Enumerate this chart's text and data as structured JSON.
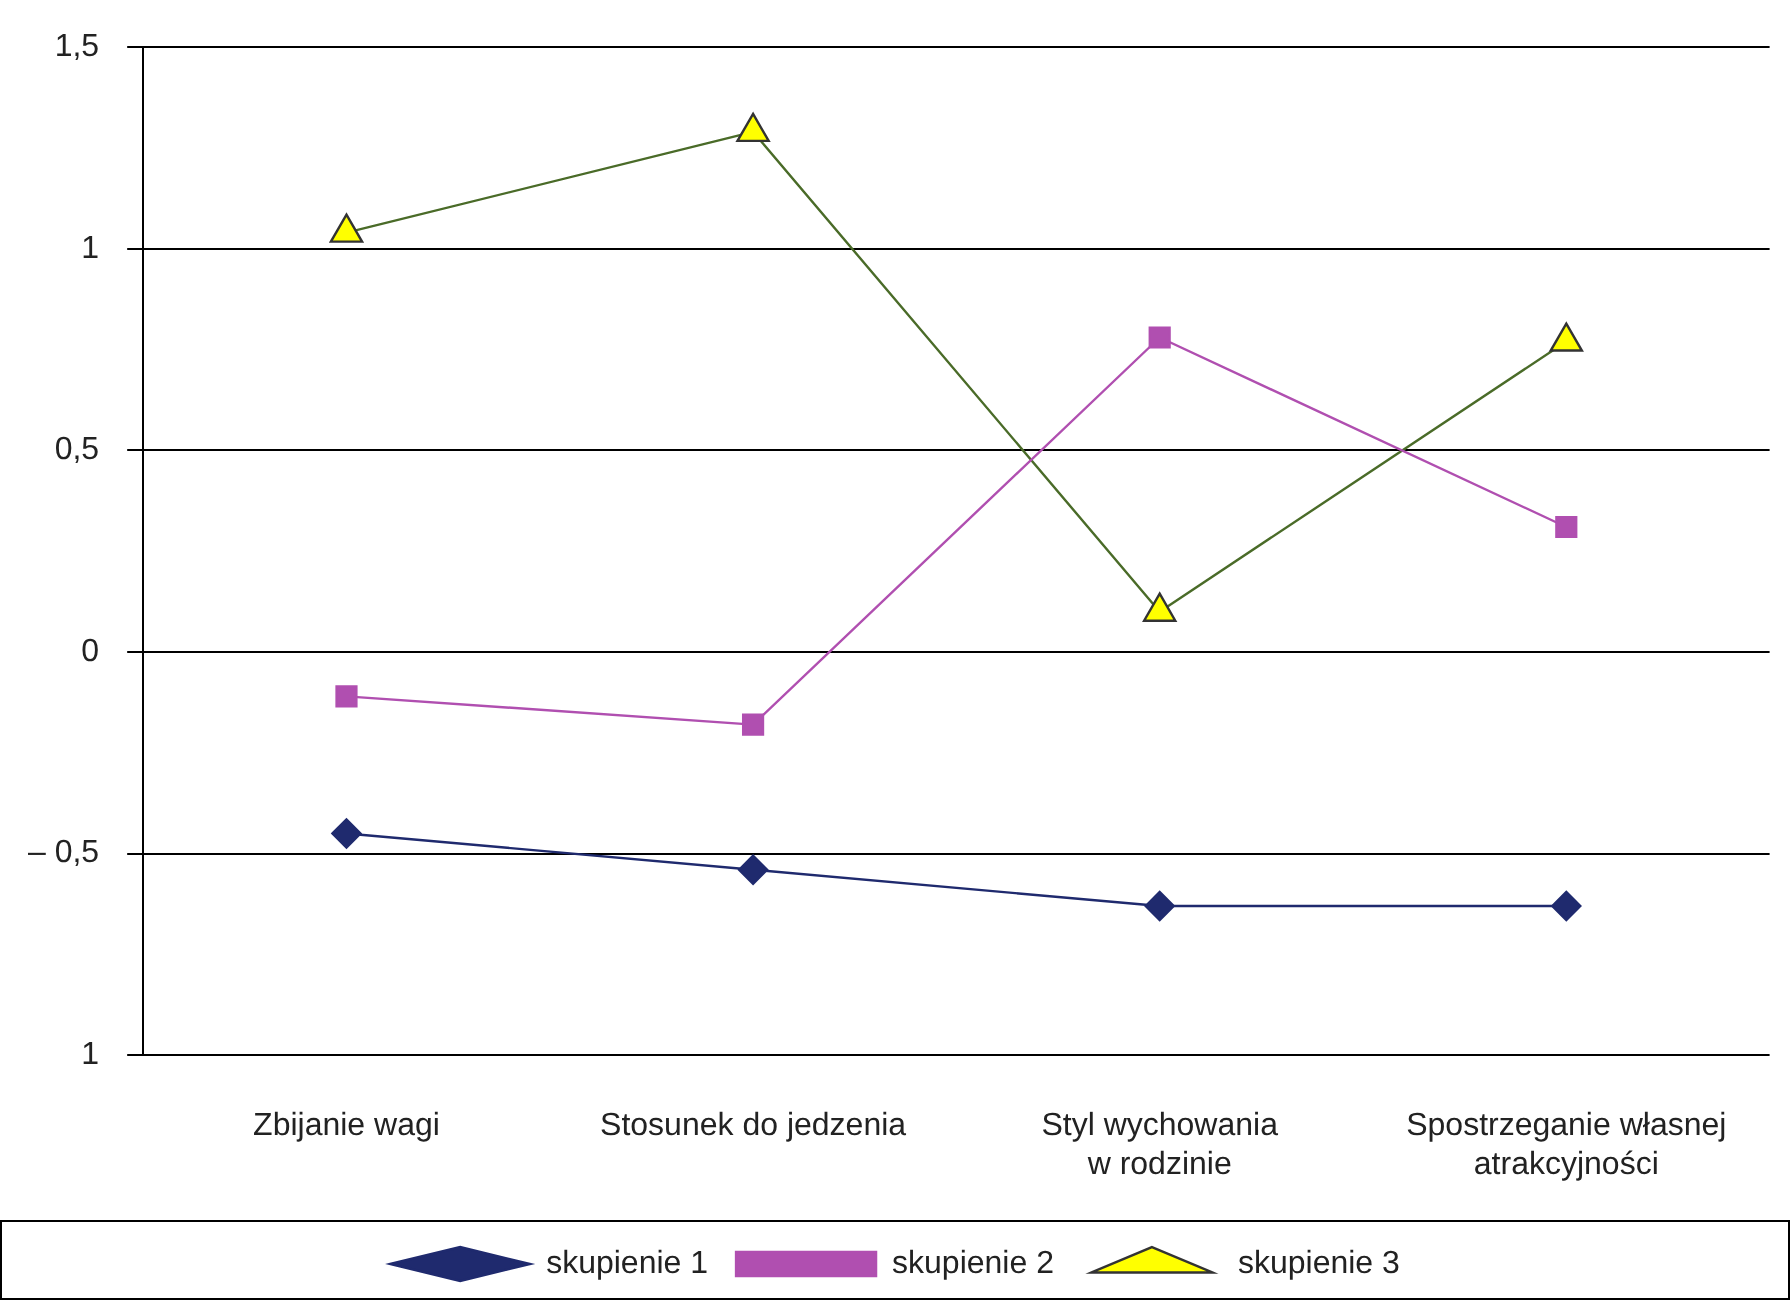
{
  "chart_data": {
    "type": "line",
    "categories": [
      "Zbijanie wagi",
      "Stosunek do jedzenia",
      "Styl wychowania\nw rodzinie",
      "Spostrzeganie własnej\natrakcyjności"
    ],
    "series": [
      {
        "name": "skupienie 1",
        "color": "#1f2a6e",
        "marker": "diamond",
        "values": [
          -0.45,
          -0.54,
          -0.63,
          -0.63
        ]
      },
      {
        "name": "skupienie 2",
        "color": "#b04fb0",
        "marker": "square",
        "values": [
          -0.11,
          -0.18,
          0.78,
          0.31
        ]
      },
      {
        "name": "skupienie 3",
        "color": "#4a6b28",
        "marker": "triangle",
        "values": [
          1.04,
          1.29,
          0.1,
          0.77
        ]
      }
    ],
    "ylim": [
      -1,
      1.5
    ],
    "yticks": [
      {
        "value": -1,
        "label": "1"
      },
      {
        "value": -0.5,
        "label": "– 0,5"
      },
      0,
      {
        "value": 0.5,
        "label": "0,5"
      },
      1,
      {
        "value": 1.5,
        "label": "1,5"
      }
    ],
    "grid": "y",
    "legend": "bottom"
  }
}
